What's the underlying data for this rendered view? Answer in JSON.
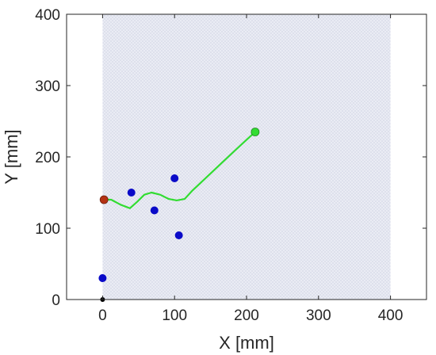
{
  "chart_data": {
    "type": "scatter",
    "title": "",
    "xlabel": "X [mm]",
    "ylabel": "Y [mm]",
    "xlim": [
      -50,
      450
    ],
    "ylim": [
      0,
      400
    ],
    "xticks": [
      0,
      100,
      200,
      300,
      400
    ],
    "yticks": [
      0,
      100,
      200,
      300,
      400
    ],
    "grid": false,
    "workspace": {
      "x": [
        0,
        400
      ],
      "y": [
        0,
        400
      ],
      "color": "#dcdfec"
    },
    "obstacles": {
      "color": "#0a0ac8",
      "points": [
        [
          0,
          30
        ],
        [
          40,
          150
        ],
        [
          72,
          125
        ],
        [
          100,
          170
        ],
        [
          106,
          90
        ]
      ]
    },
    "origin_marker": {
      "x": 0,
      "y": 0,
      "color": "#000000"
    },
    "start": {
      "x": 2,
      "y": 140,
      "color": "#b43214"
    },
    "goal": {
      "x": 212,
      "y": 235,
      "color": "#32dc32"
    },
    "path": {
      "color": "#32dc32",
      "points": [
        [
          2,
          140
        ],
        [
          12,
          140
        ],
        [
          25,
          133
        ],
        [
          38,
          128
        ],
        [
          48,
          137
        ],
        [
          58,
          147
        ],
        [
          68,
          150
        ],
        [
          80,
          147
        ],
        [
          92,
          141
        ],
        [
          103,
          139
        ],
        [
          114,
          141
        ],
        [
          125,
          153
        ],
        [
          145,
          172
        ],
        [
          165,
          191
        ],
        [
          185,
          210
        ],
        [
          200,
          224
        ],
        [
          212,
          235
        ]
      ]
    }
  }
}
